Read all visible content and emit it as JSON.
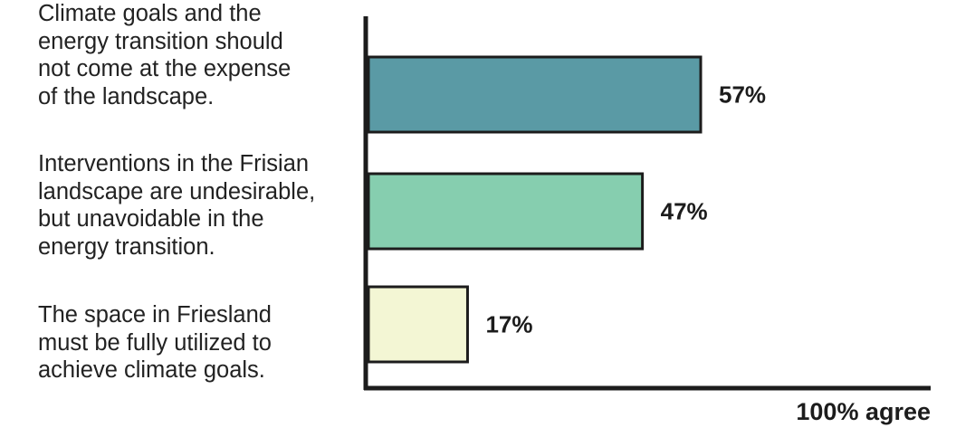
{
  "chart_data": {
    "type": "bar",
    "orientation": "horizontal",
    "categories": [
      "Climate goals and the\nenergy transition should\nnot come at the expense\nof the landscape.",
      "Interventions in the Frisian\nlandscape are undesirable,\nbut unavoidable in the\nenergy transition.",
      "The space in Friesland\nmust be fully utilized to\nachieve climate goals."
    ],
    "values": [
      57,
      47,
      17
    ],
    "value_labels": [
      "57%",
      "47%",
      "17%"
    ],
    "bar_colors": [
      "#5a9aa5",
      "#86ceaf",
      "#f3f6d4"
    ],
    "xlabel": "100% agree",
    "xlim": [
      0,
      100
    ],
    "title": "",
    "grid": false
  }
}
